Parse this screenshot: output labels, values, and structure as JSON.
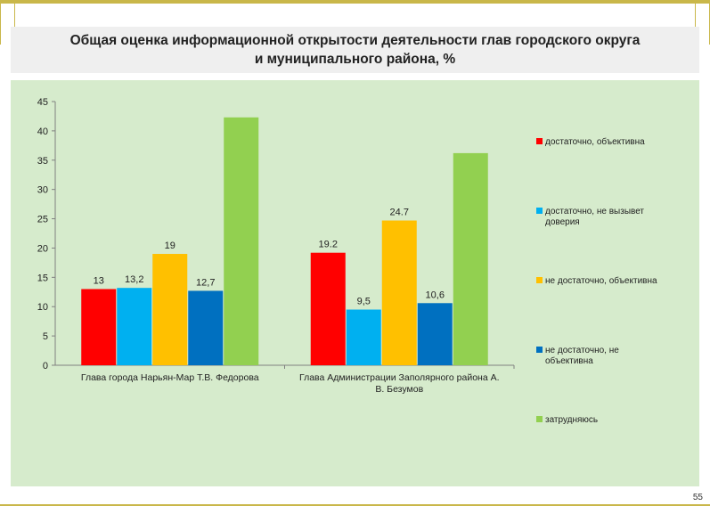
{
  "slide": {
    "title": "Общая оценка информационной открытости деятельности глав городского округа\nи муниципального района, %",
    "page_number": "55"
  },
  "colors": {
    "background": "#d6ebcc"
  },
  "chart_data": {
    "type": "bar",
    "title": "Общая оценка информационной открытости деятельности глав городского округа и муниципального района, %",
    "categories": [
      "Глава города Нарьян-Мар  Т.В. Федорова",
      "Глава Администрации Заполярного района  А. В. Безумов"
    ],
    "series": [
      {
        "name": "достаточно, объективна",
        "color": "#ff0000",
        "values": [
          13,
          19.2
        ],
        "labels": [
          "13",
          "19.2"
        ]
      },
      {
        "name": "достаточно, не вызывет доверия",
        "color": "#00b0f0",
        "values": [
          13.2,
          9.5
        ],
        "labels": [
          "13,2",
          "9,5"
        ]
      },
      {
        "name": "не достаточно, объективна",
        "color": "#ffc000",
        "values": [
          19,
          24.7
        ],
        "labels": [
          "19",
          "24.7"
        ]
      },
      {
        "name": "не достаточно, не объективна",
        "color": "#0070c0",
        "values": [
          12.7,
          10.6
        ],
        "labels": [
          "12,7",
          "10,6"
        ]
      },
      {
        "name": "затрудняюсь",
        "color": "#92d050",
        "values": [
          42.3,
          36.2
        ],
        "labels": [
          "",
          ""
        ]
      }
    ],
    "ylim": [
      0,
      45
    ],
    "yticks": [
      0,
      5,
      10,
      15,
      20,
      25,
      30,
      35,
      40,
      45
    ],
    "legend_position": "right",
    "xlabel": "",
    "ylabel": ""
  }
}
